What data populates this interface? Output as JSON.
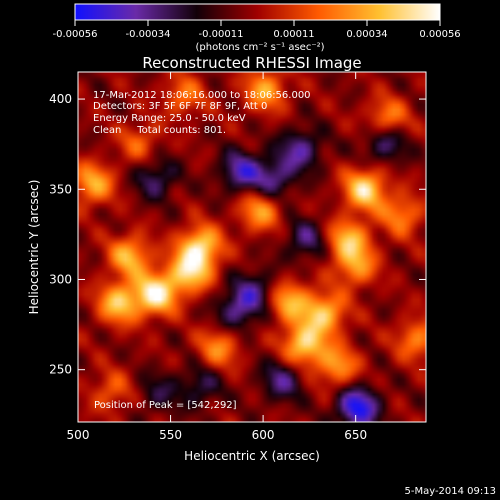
{
  "colorbar": {
    "ticks": [
      "-0.00056",
      "-0.00034",
      "-0.00011",
      "0.00011",
      "0.00034",
      "0.00056"
    ],
    "unit_label": "(photons cm⁻² s⁻¹ asec⁻²)"
  },
  "chart_data": {
    "type": "heatmap",
    "title": "Reconstructed RHESSI Image",
    "xlabel": "Heliocentric X (arcsec)",
    "ylabel": "Heliocentric Y (arcsec)",
    "xlim": [
      500,
      688
    ],
    "ylim": [
      221,
      415
    ],
    "xticks": [
      500,
      550,
      600,
      650
    ],
    "yticks": [
      250,
      300,
      350,
      400
    ],
    "color_range": [
      -0.00056,
      0.00056
    ],
    "colormap": [
      "#1010ff",
      "#6a2aa8",
      "#120008",
      "#a00000",
      "#ff5a00",
      "#ffc030",
      "#ffffff"
    ],
    "grid": false,
    "annotations": [
      "17-Mar-2012 18:06:16.000 to 18:06:56.000",
      "Detectors: 3F 5F 6F 7F 8F 9F, Att 0",
      "Energy Range: 25.0 - 50.0 keV",
      "Clean     Total counts: 801.",
      "Position of Peak = [542,292]"
    ],
    "bright_features": [
      {
        "x": 542,
        "y": 292,
        "value": 0.00056
      },
      {
        "x": 566,
        "y": 318,
        "value": 0.0005
      },
      {
        "x": 560,
        "y": 304,
        "value": 0.00046
      },
      {
        "x": 522,
        "y": 287,
        "value": 0.00044
      },
      {
        "x": 528,
        "y": 313,
        "value": 0.0004
      },
      {
        "x": 622,
        "y": 264,
        "value": 0.00048
      },
      {
        "x": 633,
        "y": 281,
        "value": 0.00044
      },
      {
        "x": 640,
        "y": 252,
        "value": 0.00034
      },
      {
        "x": 614,
        "y": 288,
        "value": 0.00038
      },
      {
        "x": 655,
        "y": 350,
        "value": 0.0005
      },
      {
        "x": 646,
        "y": 322,
        "value": 0.0004
      },
      {
        "x": 650,
        "y": 307,
        "value": 0.00032
      },
      {
        "x": 598,
        "y": 338,
        "value": 0.00034
      },
      {
        "x": 601,
        "y": 405,
        "value": 0.00036
      },
      {
        "x": 667,
        "y": 389,
        "value": 0.00032
      },
      {
        "x": 508,
        "y": 353,
        "value": 0.00038
      },
      {
        "x": 557,
        "y": 402,
        "value": 0.00026
      },
      {
        "x": 518,
        "y": 238,
        "value": 0.00022
      },
      {
        "x": 576,
        "y": 262,
        "value": 0.0003
      },
      {
        "x": 683,
        "y": 267,
        "value": 0.0003
      },
      {
        "x": 675,
        "y": 336,
        "value": 0.0003
      },
      {
        "x": 533,
        "y": 376,
        "value": 0.00022
      }
    ],
    "dark_features": [
      {
        "x": 586,
        "y": 283,
        "value": -0.0003
      },
      {
        "x": 596,
        "y": 294,
        "value": -0.00026
      },
      {
        "x": 588,
        "y": 360,
        "value": -0.00036
      },
      {
        "x": 606,
        "y": 356,
        "value": -0.0003
      },
      {
        "x": 620,
        "y": 372,
        "value": -0.00032
      },
      {
        "x": 610,
        "y": 244,
        "value": -0.00028
      },
      {
        "x": 623,
        "y": 322,
        "value": -0.00026
      },
      {
        "x": 542,
        "y": 356,
        "value": -0.00026
      },
      {
        "x": 666,
        "y": 376,
        "value": -0.0003
      },
      {
        "x": 651,
        "y": 229,
        "value": -0.0005
      },
      {
        "x": 543,
        "y": 237,
        "value": -0.00018
      },
      {
        "x": 566,
        "y": 241,
        "value": -0.00022
      }
    ]
  },
  "footer": {
    "date": "5-May-2014 09:13"
  }
}
